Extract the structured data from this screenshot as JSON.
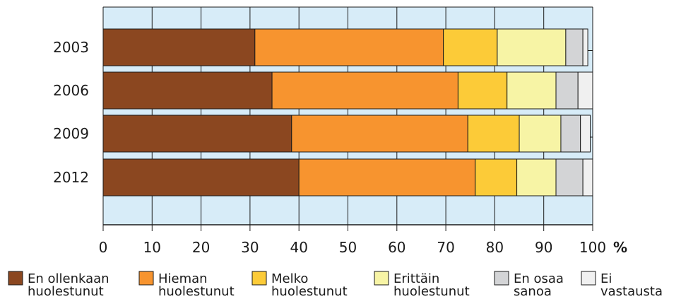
{
  "chart_data": {
    "type": "bar",
    "orientation": "horizontal",
    "stacked": true,
    "categories": [
      "2003",
      "2006",
      "2009",
      "2012"
    ],
    "series": [
      {
        "name": "En ollenkaan huolestunut",
        "label_lines": [
          "En ollenkaan",
          "huolestunut"
        ],
        "color": "#8b4720",
        "values": [
          31,
          34.5,
          38.5,
          40
        ]
      },
      {
        "name": "Hieman huolestunut",
        "label_lines": [
          "Hieman",
          "huolestunut"
        ],
        "color": "#f7942f",
        "values": [
          38.5,
          38,
          36,
          36
        ]
      },
      {
        "name": "Melko huolestunut",
        "label_lines": [
          "Melko",
          "huolestunut"
        ],
        "color": "#fccb38",
        "values": [
          11,
          10,
          10.5,
          8.5
        ]
      },
      {
        "name": "Erittäin huolestunut",
        "label_lines": [
          "Erittäin",
          "huolestunut"
        ],
        "color": "#f7f4a5",
        "values": [
          14,
          10,
          8.5,
          8
        ]
      },
      {
        "name": "En osaa sanoa",
        "label_lines": [
          "En osaa",
          "sanoa"
        ],
        "color": "#d3d4d6",
        "values": [
          3.5,
          4.5,
          4,
          5.5
        ]
      },
      {
        "name": "Ei vastausta",
        "label_lines": [
          "Ei",
          "vastausta"
        ],
        "color": "#f0f0f0",
        "values": [
          1,
          3,
          2,
          2
        ]
      }
    ],
    "xlim": [
      0,
      100
    ],
    "xticks": [
      0,
      10,
      20,
      30,
      40,
      50,
      60,
      70,
      80,
      90,
      100
    ],
    "x_unit": "%",
    "grid": "vertical",
    "plot_background": "#d7ecf8",
    "legend": "bottom"
  }
}
